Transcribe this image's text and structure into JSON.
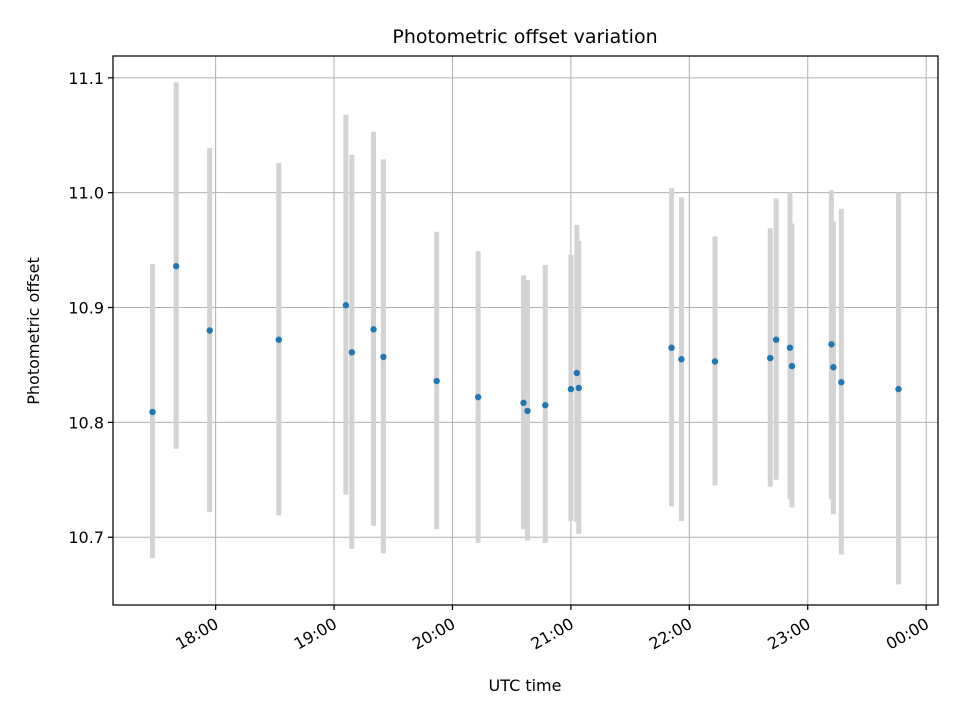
{
  "chart_data": {
    "type": "scatter",
    "title": "Photometric offset variation",
    "xlabel": "UTC time",
    "ylabel": "Photometric offset",
    "x_unit": "UTC time (HH:MM)",
    "xlim": [
      "17:08",
      "00:06"
    ],
    "ylim": [
      10.641,
      11.119
    ],
    "x_ticks": [
      "18:00",
      "19:00",
      "20:00",
      "21:00",
      "22:00",
      "23:00",
      "00:00"
    ],
    "y_ticks": [
      "10.7",
      "10.8",
      "10.9",
      "11.0",
      "11.1"
    ],
    "grid": true,
    "marker_color": "#1f77b4",
    "errorbar_color": "#d3d3d3",
    "series": [
      {
        "points": [
          {
            "t": "17:28",
            "y": 10.809,
            "lo": 10.682,
            "hi": 10.938
          },
          {
            "t": "17:40",
            "y": 10.936,
            "lo": 10.777,
            "hi": 11.096
          },
          {
            "t": "17:57",
            "y": 10.88,
            "lo": 10.722,
            "hi": 11.039
          },
          {
            "t": "18:32",
            "y": 10.872,
            "lo": 10.719,
            "hi": 11.026
          },
          {
            "t": "19:06",
            "y": 10.902,
            "lo": 10.737,
            "hi": 11.068
          },
          {
            "t": "19:09",
            "y": 10.861,
            "lo": 10.69,
            "hi": 11.033
          },
          {
            "t": "19:20",
            "y": 10.881,
            "lo": 10.71,
            "hi": 11.053
          },
          {
            "t": "19:25",
            "y": 10.857,
            "lo": 10.686,
            "hi": 11.029
          },
          {
            "t": "19:52",
            "y": 10.836,
            "lo": 10.707,
            "hi": 10.966
          },
          {
            "t": "20:13",
            "y": 10.822,
            "lo": 10.695,
            "hi": 10.949
          },
          {
            "t": "20:36",
            "y": 10.817,
            "lo": 10.707,
            "hi": 10.928
          },
          {
            "t": "20:38",
            "y": 10.81,
            "lo": 10.697,
            "hi": 10.924
          },
          {
            "t": "20:47",
            "y": 10.815,
            "lo": 10.695,
            "hi": 10.937
          },
          {
            "t": "21:00",
            "y": 10.829,
            "lo": 10.714,
            "hi": 10.946
          },
          {
            "t": "21:03",
            "y": 10.843,
            "lo": 10.713,
            "hi": 10.972
          },
          {
            "t": "21:04",
            "y": 10.83,
            "lo": 10.703,
            "hi": 10.958
          },
          {
            "t": "21:51",
            "y": 10.865,
            "lo": 10.727,
            "hi": 11.004
          },
          {
            "t": "21:56",
            "y": 10.855,
            "lo": 10.714,
            "hi": 10.996
          },
          {
            "t": "22:13",
            "y": 10.853,
            "lo": 10.745,
            "hi": 10.962
          },
          {
            "t": "22:41",
            "y": 10.856,
            "lo": 10.744,
            "hi": 10.969
          },
          {
            "t": "22:44",
            "y": 10.872,
            "lo": 10.75,
            "hi": 10.995
          },
          {
            "t": "22:51",
            "y": 10.865,
            "lo": 10.733,
            "hi": 11.0
          },
          {
            "t": "22:52",
            "y": 10.849,
            "lo": 10.726,
            "hi": 10.973
          },
          {
            "t": "23:12",
            "y": 10.868,
            "lo": 10.733,
            "hi": 11.002
          },
          {
            "t": "23:13",
            "y": 10.848,
            "lo": 10.72,
            "hi": 10.975
          },
          {
            "t": "23:17",
            "y": 10.835,
            "lo": 10.685,
            "hi": 10.986
          },
          {
            "t": "23:46",
            "y": 10.829,
            "lo": 10.659,
            "hi": 11.0
          }
        ]
      }
    ]
  }
}
